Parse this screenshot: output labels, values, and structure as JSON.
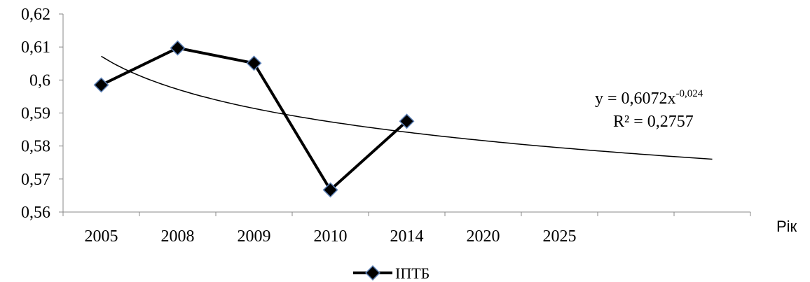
{
  "chart_data": {
    "type": "line",
    "categories": [
      "2005",
      "2008",
      "2009",
      "2010",
      "2014",
      "2020",
      "2025"
    ],
    "series": [
      {
        "name": "ІПТБ",
        "values": [
          0.5985,
          0.6097,
          0.6051,
          0.5667,
          0.5875,
          null,
          null
        ]
      }
    ],
    "trendline": {
      "type": "power",
      "coefficient": 0.6072,
      "exponent": -0.024,
      "x_points": 9,
      "equation_prefix": "y = 0,6072x",
      "equation_exponent": "-0,024",
      "r_squared_label": "R² = 0,2757"
    },
    "xlabel": "Рік",
    "ylabel": "",
    "ylim": [
      0.56,
      0.62
    ],
    "yticks": [
      "0,56",
      "0,57",
      "0,58",
      "0,59",
      "0,6",
      "0,61",
      "0,62"
    ],
    "grid": false,
    "legend_position": "bottom",
    "colors": {
      "series_line": "#000000",
      "marker_fill": "#000000",
      "marker_stroke": "#5b7fb5",
      "trend_line": "#000000"
    }
  }
}
